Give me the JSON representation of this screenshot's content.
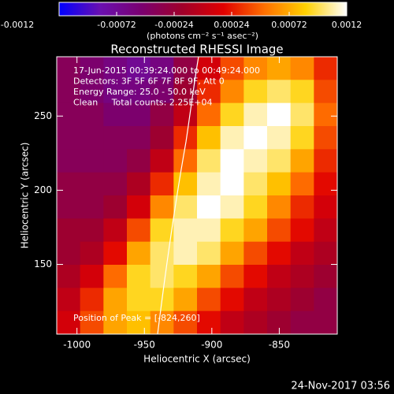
{
  "chart_data": {
    "type": "heatmap",
    "title": "Reconstructed RHESSI Image",
    "colorbar_label": "(photons cm⁻² s⁻¹ asec⁻²)",
    "zlim": [
      -0.0012,
      0.0012
    ],
    "zticks": [
      -0.0012,
      -0.00072,
      -0.00024,
      0.00024,
      0.00072,
      0.0012
    ],
    "colormap": [
      "#0000ff",
      "#6a10b0",
      "#7a0070",
      "#a0002a",
      "#e00000",
      "#ff7000",
      "#ffd000",
      "#ffffff"
    ],
    "x_label": "Heliocentric X (arcsec)",
    "y_label": "Heliocentric Y (arcsec)",
    "xlim": [
      -1015,
      -807
    ],
    "ylim": [
      103,
      290
    ],
    "xticks": [
      -1000,
      -950,
      -900,
      -850
    ],
    "yticks": [
      150,
      200,
      250
    ],
    "annotations": [
      "17-Jun-2015 00:39:24.000 to 00:49:24.000",
      "Detectors: 3F 5F 6F 7F 8F 9F, Att 0",
      "Energy Range: 25.0 - 50.0 keV",
      "Clean     Total counts: 2.25E+04"
    ],
    "peak_label": "Position of Peak = [-824,260]",
    "timestamp": "24-Nov-2017 03:56",
    "values": [
      [
        -0.0004,
        -0.0005,
        -0.0006,
        -0.0007,
        -0.0006,
        -0.0003,
        0.0001,
        0.0004,
        0.0006,
        0.0007,
        0.0006,
        0.0003
      ],
      [
        -0.0004,
        -0.0005,
        -0.0006,
        -0.0006,
        -0.0005,
        -0.0002,
        0.0003,
        0.0006,
        0.0009,
        0.001,
        0.0009,
        0.0004
      ],
      [
        -0.0004,
        -0.0004,
        -0.0005,
        -0.0005,
        -0.0003,
        0,
        0.0005,
        0.0009,
        0.0011,
        0.0012,
        0.001,
        0.0005
      ],
      [
        -0.0004,
        -0.0004,
        -0.0004,
        -0.0004,
        -0.0002,
        0.0003,
        0.0008,
        0.0011,
        0.0012,
        0.0011,
        0.0009,
        0.0004
      ],
      [
        -0.0004,
        -0.0004,
        -0.0004,
        -0.0003,
        0,
        0.0005,
        0.001,
        0.0012,
        0.0011,
        0.001,
        0.0007,
        0.0003
      ],
      [
        -0.0003,
        -0.0003,
        -0.0003,
        -0.0001,
        0.0003,
        0.0008,
        0.0011,
        0.0012,
        0.001,
        0.0008,
        0.0005,
        0.0002
      ],
      [
        -0.0003,
        -0.0003,
        -0.0002,
        0.0001,
        0.0006,
        0.001,
        0.0012,
        0.0011,
        0.0009,
        0.0006,
        0.0003,
        0.0001
      ],
      [
        -0.0002,
        -0.0002,
        0,
        0.0004,
        0.0009,
        0.0011,
        0.0011,
        0.0009,
        0.0007,
        0.0004,
        0.0002,
        0
      ],
      [
        -0.0002,
        -0.0001,
        0.0002,
        0.0007,
        0.001,
        0.0011,
        0.001,
        0.0007,
        0.0004,
        0.0002,
        0,
        -0.0001
      ],
      [
        -0.0001,
        0.0001,
        0.0005,
        0.0009,
        0.001,
        0.0009,
        0.0007,
        0.0004,
        0.0002,
        0,
        -0.0001,
        -0.0002
      ],
      [
        0,
        0.0003,
        0.0007,
        0.0009,
        0.0009,
        0.0007,
        0.0004,
        0.0002,
        0,
        -0.0001,
        -0.0002,
        -0.0003
      ],
      [
        0.0001,
        0.0004,
        0.0007,
        0.0008,
        0.0006,
        0.0004,
        0.0002,
        0,
        -0.0001,
        -0.0002,
        -0.0003,
        -0.0003
      ]
    ]
  }
}
